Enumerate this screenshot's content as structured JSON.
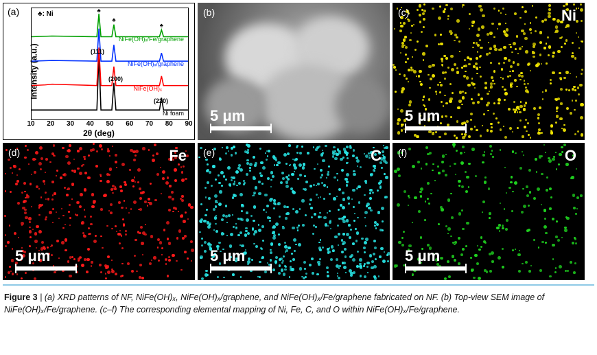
{
  "figure_number": "Figure 3",
  "caption_parts": {
    "a": "(a) XRD patterns of NF, NiFe(OH)ₓ, NiFe(OH)ₓ/graphene, and NiFe(OH)ₓ/Fe/graphene fabricated on NF.",
    "b": "(b) Top-view SEM image of NiFe(OH)ₓ/Fe/graphene.",
    "cf": "(c–f) The corresponding elemental mapping of Ni, Fe, C, and O within NiFe(OH)ₓ/Fe/graphene."
  },
  "panels": {
    "a": {
      "label": "(a)",
      "type": "line",
      "legend_symbol": "♣: Ni",
      "xlabel": "2θ  (deg)",
      "ylabel": "Intensity (a.u.)",
      "xlim": [
        10,
        90
      ],
      "xtick_step": 10,
      "xticks": [
        "10",
        "20",
        "30",
        "40",
        "50",
        "60",
        "70",
        "80",
        "90"
      ],
      "background_color": "#ffffff",
      "axis_color": "#000000",
      "title_fontsize": 12,
      "label_fontsize": 12,
      "tick_fontsize": 10,
      "linetick_width": 1.5,
      "traces": [
        {
          "name": "Ni foam",
          "color": "#000000",
          "offset": 0,
          "peaks_2theta": [
            44.5,
            51.8,
            76.4
          ]
        },
        {
          "name": "NiFe(OH)ₓ",
          "color": "#ff0000",
          "offset": 36,
          "peaks_2theta": [
            44.5,
            51.8,
            76.4
          ]
        },
        {
          "name": "NiFe(OH)ₓ/graphene",
          "color": "#0030ff",
          "offset": 72,
          "peaks_2theta": [
            44.5,
            51.8,
            76.4
          ]
        },
        {
          "name": "NiFe(OH)ₓ/Fe/graphene",
          "color": "#00a000",
          "offset": 108,
          "peaks_2theta": [
            44.5,
            51.8,
            76.4
          ]
        }
      ],
      "peak_labels": [
        {
          "text": "(111)",
          "at_2theta": 44.5
        },
        {
          "text": "(200)",
          "at_2theta": 51.8
        },
        {
          "text": "(220)",
          "at_2theta": 76.4
        }
      ]
    },
    "b": {
      "label": "(b)",
      "type": "sem-image",
      "label_color": "#ffffff",
      "scalebar_text": "5 μm",
      "scalebar_color": "#ffffff",
      "background_gradient": [
        "#4a4a4a",
        "#b8b8b8",
        "#6a6a6a"
      ]
    },
    "c": {
      "label": "(c)",
      "type": "eds-map",
      "element": "Ni",
      "label_color": "#ffffff",
      "dot_color": "#f2e600",
      "dot_count": 520,
      "scalebar_text": "5 μm"
    },
    "d": {
      "label": "(d)",
      "type": "eds-map",
      "element": "Fe",
      "label_color": "#ffffff",
      "dot_color": "#ff1a1a",
      "dot_count": 420,
      "scalebar_text": "5 μm"
    },
    "e": {
      "label": "(e)",
      "type": "eds-map",
      "element": "C",
      "label_color": "#ffffff",
      "dot_color": "#27e3e3",
      "dot_count": 620,
      "scalebar_text": "5 μm"
    },
    "f": {
      "label": "(f)",
      "type": "eds-map",
      "element": "O",
      "label_color": "#ffffff",
      "dot_color": "#1fd41f",
      "dot_count": 260,
      "scalebar_text": "5 μm"
    }
  },
  "colors": {
    "rule": "#8ec9e6",
    "text": "#111111",
    "page_bg": "#ffffff"
  }
}
